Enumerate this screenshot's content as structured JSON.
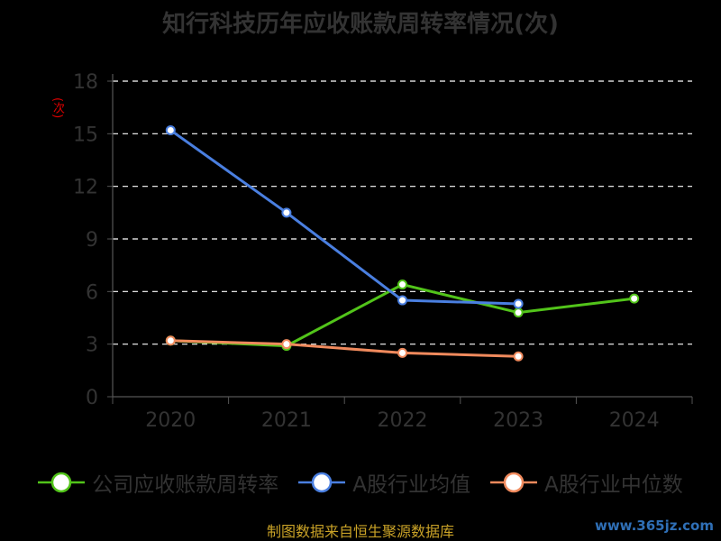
{
  "chart_data": {
    "type": "line",
    "title": "知行科技历年应收账款周转率情况(次)",
    "ylabel": "(次)",
    "categories": [
      "2020",
      "2021",
      "2022",
      "2023",
      "2024"
    ],
    "ylim": [
      0,
      18
    ],
    "yticks": [
      0,
      3,
      6,
      9,
      12,
      15,
      18
    ],
    "grid": true,
    "legend_position": "bottom",
    "series": [
      {
        "name": "公司应收账款周转率",
        "color": "#52c41a",
        "values": [
          3.2,
          2.9,
          6.4,
          4.8,
          5.6
        ]
      },
      {
        "name": "A股行业均值",
        "color": "#4a7fe0",
        "values": [
          15.2,
          10.5,
          5.5,
          5.3,
          null
        ]
      },
      {
        "name": "A股行业中位数",
        "color": "#f08a5d",
        "values": [
          3.2,
          3.0,
          2.5,
          2.3,
          null
        ]
      }
    ]
  },
  "footer": {
    "source": "制图数据来自恒生聚源数据库",
    "watermark": "www.365jz.com"
  }
}
